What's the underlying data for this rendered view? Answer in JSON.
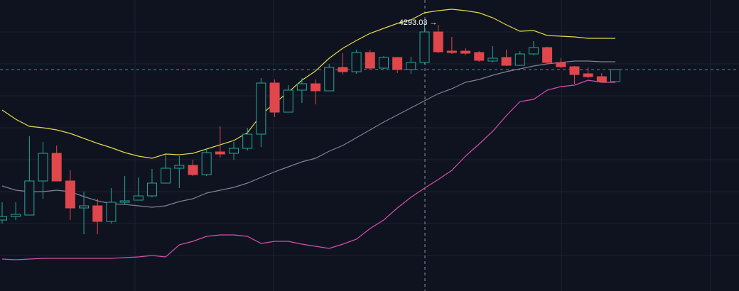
{
  "chart_data": {
    "type": "candlestick",
    "annotation": "4293.03 →",
    "ylim": [
      3913,
      4323
    ],
    "up_color": "#26a69a",
    "down_color": "#e0474c",
    "open": [
      4013,
      4018,
      4020,
      4068,
      4107,
      4068,
      4030,
      4033,
      4011,
      4038,
      4041,
      4047,
      4065,
      4086,
      4090,
      4077,
      4109,
      4107,
      4114,
      4134,
      4206,
      4165,
      4196,
      4205,
      4195,
      4228,
      4222,
      4249,
      4227,
      4242,
      4225,
      4235,
      4278,
      4251,
      4251,
      4249,
      4237,
      4242,
      4231,
      4247,
      4256,
      4235,
      4229,
      4219,
      4215,
      4208
    ],
    "high": [
      4038,
      4038,
      4131,
      4123,
      4118,
      4083,
      4053,
      4043,
      4058,
      4075,
      4073,
      4085,
      4105,
      4103,
      4098,
      4113,
      4145,
      4123,
      4143,
      4213,
      4211,
      4203,
      4213,
      4211,
      4233,
      4248,
      4253,
      4253,
      4244,
      4243,
      4243,
      4293.03,
      4288,
      4271,
      4255,
      4251,
      4258,
      4253,
      4251,
      4265,
      4257,
      4241,
      4230,
      4228,
      4220,
      4225
    ],
    "low": [
      4008,
      4013,
      4020,
      4043,
      4068,
      4013,
      3993,
      3993,
      4008,
      4035,
      4041,
      4045,
      4065,
      4058,
      4075,
      4075,
      4101,
      4098,
      4111,
      4116,
      4158,
      4165,
      4178,
      4176,
      4195,
      4218,
      4219,
      4226,
      4226,
      4220,
      4219,
      4233,
      4248,
      4247,
      4245,
      4236,
      4235,
      4230,
      4230,
      4245,
      4233,
      4227,
      4205,
      4213,
      4207,
      4208
    ],
    "close": [
      4018,
      4021,
      4068,
      4107,
      4068,
      4030,
      4033,
      4011,
      4038,
      4040,
      4047,
      4065,
      4086,
      4090,
      4077,
      4108,
      4106,
      4114,
      4134,
      4206,
      4165,
      4196,
      4205,
      4195,
      4228,
      4222,
      4249,
      4227,
      4242,
      4225,
      4235,
      4278,
      4250,
      4249,
      4248,
      4238,
      4241,
      4231,
      4247,
      4256,
      4235,
      4229,
      4218,
      4215,
      4208,
      4225
    ],
    "lines": [
      {
        "color": "#e3d94b",
        "values": [
          4168,
          4155,
          4145,
          4143,
          4140,
          4135,
          4128,
          4121,
          4115,
          4108,
          4103,
          4100,
          4106,
          4105,
          4107,
          4113,
          4119,
          4125,
          4136,
          4161,
          4178,
          4193,
          4210,
          4223,
          4241,
          4255,
          4266,
          4276,
          4283,
          4290,
          4295,
          4305,
          4308,
          4310,
          4308,
          4305,
          4298,
          4288,
          4279,
          4280,
          4273,
          4272,
          4271,
          4269,
          4269,
          4269
        ]
      },
      {
        "color": "#7d8296",
        "values": [
          4061,
          4055,
          4053,
          4053,
          4055,
          4053,
          4046,
          4040,
          4036,
          4035,
          4033,
          4031,
          4033,
          4039,
          4043,
          4051,
          4055,
          4059,
          4065,
          4073,
          4081,
          4088,
          4095,
          4100,
          4110,
          4118,
          4129,
          4140,
          4151,
          4161,
          4171,
          4181,
          4191,
          4198,
          4207,
          4211,
          4217,
          4222,
          4226,
          4230,
          4233,
          4235,
          4237,
          4237,
          4236,
          4236
        ]
      },
      {
        "color": "#d44fae",
        "values": [
          3958,
          3957,
          3958,
          3959,
          3959,
          3959,
          3959,
          3959,
          3959,
          3960,
          3961,
          3963,
          3961,
          3978,
          3983,
          3990,
          3992,
          3992,
          3990,
          3980,
          3983,
          3983,
          3979,
          3976,
          3973,
          3979,
          3986,
          4001,
          4013,
          4030,
          4045,
          4058,
          4070,
          4083,
          4103,
          4120,
          4138,
          4160,
          4180,
          4183,
          4196,
          4201,
          4203,
          4210,
          4207,
          4207
        ]
      }
    ]
  }
}
